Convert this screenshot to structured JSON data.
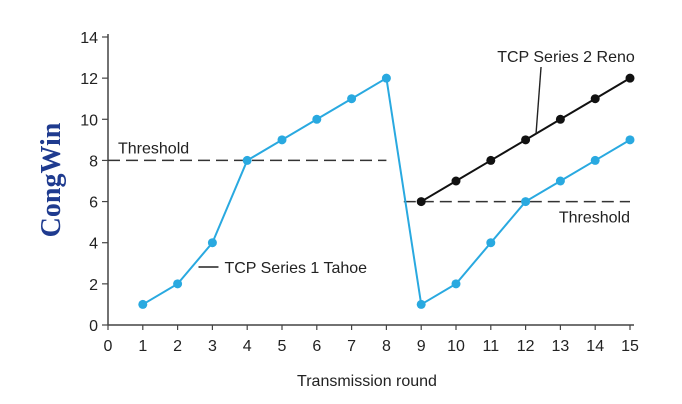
{
  "chart_data": {
    "type": "line",
    "title": "",
    "xlabel": "Transmission round",
    "ylabel": "CongWin",
    "xlim": [
      0,
      15
    ],
    "ylim": [
      0,
      14
    ],
    "x_ticks": [
      0,
      1,
      2,
      3,
      4,
      5,
      6,
      7,
      8,
      9,
      10,
      11,
      12,
      13,
      14,
      15
    ],
    "y_ticks": [
      0,
      2,
      4,
      6,
      8,
      10,
      12,
      14
    ],
    "grid": false,
    "series": [
      {
        "name": "TCP Series 1 Tahoe",
        "color": "#29a9e0",
        "x": [
          1,
          2,
          3,
          4,
          5,
          6,
          7,
          8,
          9,
          10,
          11,
          12,
          13,
          14,
          15
        ],
        "y": [
          1,
          2,
          4,
          8,
          9,
          10,
          11,
          12,
          1,
          2,
          4,
          6,
          7,
          8,
          9
        ]
      },
      {
        "name": "TCP Series 2 Reno",
        "color": "#111111",
        "x": [
          9,
          10,
          11,
          12,
          13,
          14,
          15
        ],
        "y": [
          6,
          7,
          8,
          9,
          10,
          11,
          12
        ]
      }
    ],
    "thresholds": [
      {
        "label": "Threshold",
        "y": 8,
        "x_start": 0,
        "x_end": 8
      },
      {
        "label": "Threshold",
        "y": 6,
        "x_start": 8.5,
        "x_end": 15
      }
    ]
  }
}
